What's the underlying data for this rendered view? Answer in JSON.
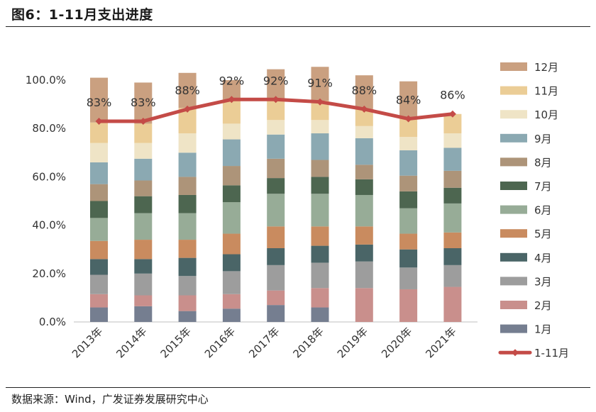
{
  "figure": {
    "title": "图6：1-11月支出进度",
    "source": "数据来源：Wind，广发证券发展研究中心"
  },
  "chart_data": {
    "type": "bar",
    "stacked": true,
    "categories": [
      "2013年",
      "2014年",
      "2015年",
      "2016年",
      "2017年",
      "2018年",
      "2019年",
      "2020年",
      "2021年"
    ],
    "ylim": [
      0,
      100
    ],
    "yticks": [
      0,
      20,
      40,
      60,
      80,
      100
    ],
    "ytick_labels": [
      "0.0%",
      "20.0%",
      "40.0%",
      "60.0%",
      "80.0%",
      "100.0%"
    ],
    "legend_position": "right",
    "series": [
      {
        "name": "1月",
        "color": "#757e90",
        "values": [
          6.0,
          6.5,
          4.5,
          5.5,
          7.0,
          6.0,
          0,
          0,
          0
        ]
      },
      {
        "name": "2月",
        "color": "#c98f8c",
        "values": [
          5.5,
          4.5,
          6.5,
          6.0,
          6.0,
          8.0,
          14.0,
          13.5,
          14.5
        ]
      },
      {
        "name": "3月",
        "color": "#9d9d9d",
        "values": [
          8.0,
          9.0,
          8.0,
          9.5,
          10.5,
          10.5,
          11.0,
          9.0,
          9.0
        ]
      },
      {
        "name": "4月",
        "color": "#4a6567",
        "values": [
          6.5,
          6.0,
          7.5,
          7.0,
          7.0,
          7.0,
          7.0,
          7.5,
          7.0
        ]
      },
      {
        "name": "5月",
        "color": "#c98b5f",
        "values": [
          7.5,
          8.0,
          7.5,
          8.5,
          9.0,
          8.0,
          7.5,
          6.5,
          6.5
        ]
      },
      {
        "name": "6月",
        "color": "#97ac97",
        "values": [
          9.5,
          11.0,
          11.0,
          13.0,
          13.5,
          13.5,
          13.0,
          10.5,
          12.0
        ]
      },
      {
        "name": "7月",
        "color": "#4d6650",
        "values": [
          7.0,
          7.0,
          7.5,
          7.0,
          6.5,
          7.0,
          6.5,
          7.0,
          6.5
        ]
      },
      {
        "name": "8月",
        "color": "#ad9479",
        "values": [
          7.0,
          6.5,
          7.5,
          8.0,
          8.0,
          7.0,
          6.0,
          6.5,
          7.0
        ]
      },
      {
        "name": "9月",
        "color": "#8ba9b2",
        "values": [
          9.0,
          9.0,
          10.0,
          11.0,
          10.0,
          11.0,
          11.0,
          10.5,
          9.5
        ]
      },
      {
        "name": "10月",
        "color": "#efe4c6",
        "values": [
          8.0,
          6.5,
          8.0,
          6.5,
          6.0,
          5.5,
          5.0,
          5.5,
          6.0
        ]
      },
      {
        "name": "11月",
        "color": "#ebcd96",
        "values": [
          8.5,
          8.0,
          10.5,
          10.0,
          8.5,
          8.0,
          7.0,
          8.0,
          8.0
        ]
      },
      {
        "name": "12月",
        "color": "#caa080",
        "values": [
          18.5,
          17.0,
          14.5,
          8.0,
          12.5,
          14.0,
          14.0,
          15.0,
          0
        ]
      }
    ],
    "line_series": {
      "name": "1-11月",
      "color": "#c44b47",
      "values": [
        83,
        83,
        88,
        92,
        92,
        91,
        88,
        84,
        86
      ],
      "labels": [
        "83%",
        "83%",
        "88%",
        "92%",
        "92%",
        "91%",
        "88%",
        "84%",
        "86%"
      ]
    }
  }
}
